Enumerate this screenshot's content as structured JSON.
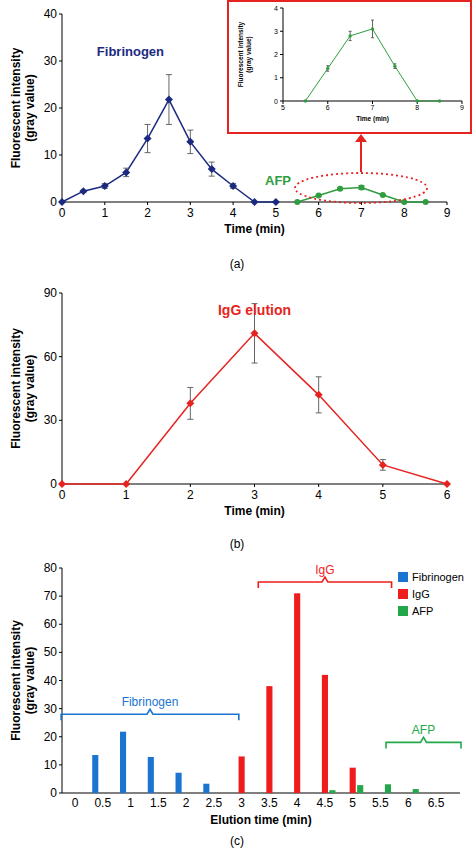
{
  "chart_data": [
    {
      "type": "line",
      "caption": "(a)",
      "x_label": "Time (min)",
      "y_label": "Fluorescent intensity (gray value)",
      "xlim": [
        0,
        9
      ],
      "xticks": [
        0,
        1,
        2,
        3,
        4,
        5,
        6,
        7,
        8,
        9
      ],
      "ylim": [
        0,
        40
      ],
      "yticks": [
        0,
        10,
        20,
        30,
        40
      ],
      "series": [
        {
          "color": "#1b2a80",
          "marker": "diamond",
          "x": [
            0,
            0.5,
            1,
            1.5,
            2,
            2.5,
            3,
            3.5,
            4,
            4.5,
            5
          ],
          "values": [
            0,
            2.3,
            3.4,
            6.3,
            13.5,
            21.8,
            12.8,
            7,
            3.4,
            0,
            0
          ],
          "errors": [
            0,
            0.2,
            0.5,
            0.9,
            3.0,
            5.3,
            2.5,
            1.5,
            0.5,
            0,
            0
          ]
        },
        {
          "color": "#2e9e3e",
          "marker": "circle",
          "x": [
            5.5,
            6,
            6.5,
            7,
            7.5,
            8,
            8.5
          ],
          "values": [
            0,
            1.4,
            2.8,
            3.1,
            1.5,
            0,
            0
          ],
          "errors": [
            0,
            0.15,
            0.2,
            0.4,
            0.1,
            0,
            0
          ]
        }
      ],
      "annotations": [
        {
          "text": "Fibrinogen",
          "x": 1.6,
          "y": 32,
          "color": "#1b2a80"
        },
        {
          "text": "AFP",
          "x": 5.05,
          "y": 4.6,
          "color": "#2e9e3e"
        }
      ]
    },
    {
      "type": "line",
      "x_label": "Time (min)",
      "y_label": "Fluorescent intensity (gray value)",
      "xlim": [
        5,
        9
      ],
      "xticks": [
        5,
        6,
        7,
        8,
        9
      ],
      "ylim": [
        0,
        4
      ],
      "yticks": [
        0,
        1,
        2,
        3,
        4
      ],
      "series": [
        {
          "color": "#2e9e3e",
          "marker": "circle",
          "x": [
            5.5,
            6,
            6.5,
            7,
            7.5,
            8,
            8.5
          ],
          "values": [
            0,
            1.4,
            2.8,
            3.1,
            1.5,
            0,
            0
          ],
          "errors": [
            0,
            0.12,
            0.2,
            0.38,
            0.1,
            0,
            0
          ]
        }
      ]
    },
    {
      "type": "line",
      "caption": "(b)",
      "x_label": "Time (min)",
      "y_label": "Fluorescent intensity (gray value)",
      "xlim": [
        0,
        6
      ],
      "xticks": [
        0,
        1,
        2,
        3,
        4,
        5,
        6
      ],
      "ylim": [
        0,
        90
      ],
      "yticks": [
        0,
        30,
        60,
        90
      ],
      "series": [
        {
          "color": "#e52421",
          "marker": "diamond",
          "x": [
            0,
            1,
            2,
            3,
            4,
            5,
            6
          ],
          "values": [
            0,
            0,
            38,
            71,
            42,
            9,
            0
          ],
          "errors": [
            0,
            0,
            7.5,
            14,
            8.5,
            2.5,
            0
          ]
        }
      ],
      "annotations": [
        {
          "text": "IgG elution",
          "x": 3,
          "y": 82,
          "color": "#e52421"
        }
      ]
    },
    {
      "type": "bar",
      "caption": "(c)",
      "x_label": "Elution time (min)",
      "y_label": "Fluorescent intensity (gray value)",
      "categories": [
        "0",
        "0.5",
        "1",
        "1.5",
        "2",
        "2.5",
        "3",
        "3.5",
        "4",
        "4.5",
        "5",
        "5.5",
        "6",
        "6.5"
      ],
      "ylim": [
        0,
        80
      ],
      "yticks": [
        0,
        10,
        20,
        30,
        40,
        50,
        60,
        70,
        80
      ],
      "legend": "upper right",
      "series": [
        {
          "name": "Fibrinogen",
          "color": "#1a74d0",
          "values": [
            null,
            13.5,
            21.8,
            12.8,
            7.2,
            3.3,
            null,
            null,
            null,
            null,
            null,
            null,
            null,
            null
          ]
        },
        {
          "name": "IgG",
          "color": "#ee1c1c",
          "values": [
            null,
            null,
            null,
            null,
            null,
            null,
            13,
            38,
            71,
            42,
            9,
            null,
            null,
            null
          ]
        },
        {
          "name": "AFP",
          "color": "#22a84a",
          "values": [
            null,
            null,
            null,
            null,
            null,
            null,
            null,
            null,
            null,
            1.0,
            2.8,
            3.1,
            1.4,
            null
          ]
        }
      ],
      "annotations": [
        {
          "text": "Fibrinogen",
          "x": [
            -0.5,
            5.9
          ],
          "y": 28,
          "color": "#1a74d0"
        },
        {
          "text": "IgG",
          "x": [
            6.6,
            11.4
          ],
          "y": 75,
          "color": "#ee1c1c"
        },
        {
          "text": "AFP",
          "x": [
            11.2,
            13.9
          ],
          "y": 18,
          "color": "#22a84a"
        }
      ]
    }
  ]
}
